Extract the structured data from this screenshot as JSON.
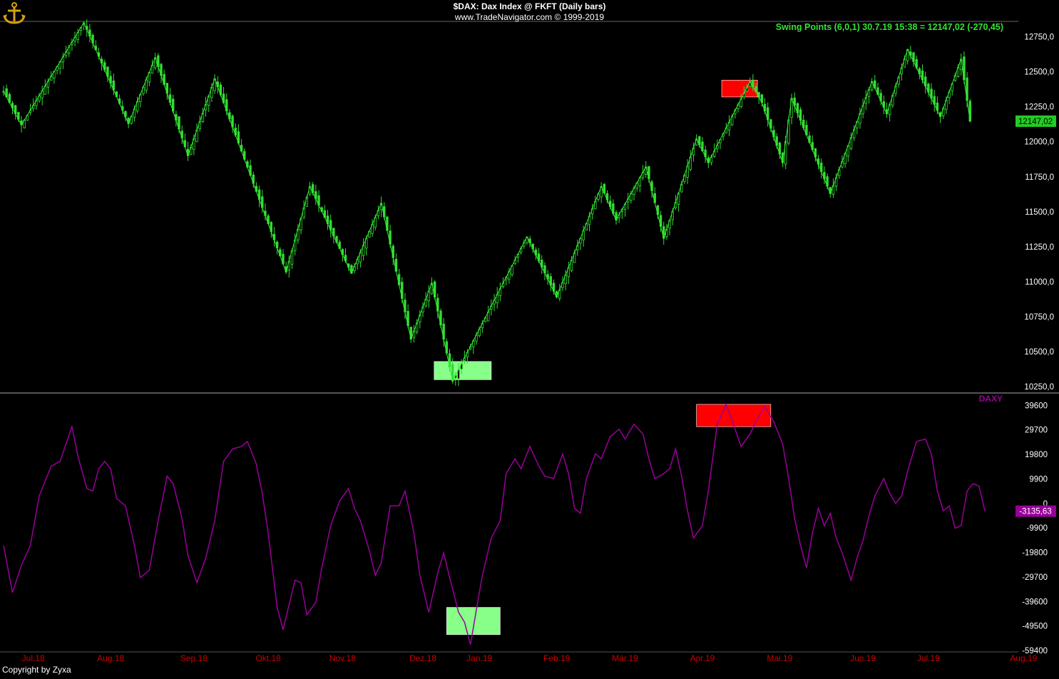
{
  "header": {
    "title": "$DAX:  Dax Index @ FKFT  (Daily bars)",
    "subtitle": "www.TradeNavigator.com © 1999-2019",
    "indicator_label": "Swing Points (6,0,1)   30.7.19 15:38 = 12147,02 (-270,45)",
    "logo_icon": "anchor-icon"
  },
  "footer": {
    "copyright": "Copyright by Zyxa"
  },
  "colors": {
    "background": "#000000",
    "candle": "#33dd33",
    "swing_line": "#33ee33",
    "oscillator": "#990099",
    "axis_label": "#ffffff",
    "month_label": "#cc0000",
    "last_price_box": "#22cc22",
    "osc_value_box": "#990099",
    "highlight_green": "#88ff88",
    "highlight_red": "#ff0000"
  },
  "chart_data": [
    {
      "type": "candlestick",
      "name": "price-panel",
      "title": "$DAX:  Dax Index @ FKFT  (Daily bars)",
      "ylim": [
        10200,
        12870
      ],
      "y_ticks": [
        "12750,0",
        "12500,0",
        "12250,0",
        "12000,0",
        "11750,0",
        "11500,0",
        "11250,0",
        "11000,0",
        "10750,0",
        "10500,0",
        "10250,0"
      ],
      "y_tick_values": [
        12750,
        12500,
        12250,
        12000,
        11750,
        11500,
        11250,
        11000,
        10750,
        10500,
        10250
      ],
      "last_price": 12147.02,
      "last_price_label": "12147,02",
      "swing_points": [
        {
          "d": 0,
          "v": 12360
        },
        {
          "d": 6,
          "v": 12120
        },
        {
          "d": 27,
          "v": 12850
        },
        {
          "d": 42,
          "v": 12130
        },
        {
          "d": 51,
          "v": 12600
        },
        {
          "d": 62,
          "v": 11900
        },
        {
          "d": 71,
          "v": 12450
        },
        {
          "d": 95,
          "v": 11070
        },
        {
          "d": 103,
          "v": 11680
        },
        {
          "d": 117,
          "v": 11060
        },
        {
          "d": 127,
          "v": 11560
        },
        {
          "d": 137,
          "v": 10590
        },
        {
          "d": 144,
          "v": 10990
        },
        {
          "d": 151,
          "v": 10290
        },
        {
          "d": 176,
          "v": 11320
        },
        {
          "d": 186,
          "v": 10890
        },
        {
          "d": 201,
          "v": 11680
        },
        {
          "d": 206,
          "v": 11440
        },
        {
          "d": 216,
          "v": 11820
        },
        {
          "d": 222,
          "v": 11310
        },
        {
          "d": 233,
          "v": 12020
        },
        {
          "d": 237,
          "v": 11850
        },
        {
          "d": 251,
          "v": 12430
        },
        {
          "d": 255,
          "v": 12280
        },
        {
          "d": 262,
          "v": 11850
        },
        {
          "d": 265,
          "v": 12310
        },
        {
          "d": 278,
          "v": 11630
        },
        {
          "d": 292,
          "v": 12430
        },
        {
          "d": 297,
          "v": 12200
        },
        {
          "d": 304,
          "v": 12660
        },
        {
          "d": 315,
          "v": 12180
        },
        {
          "d": 322,
          "v": 12590
        },
        {
          "d": 325,
          "v": 12147
        }
      ],
      "highlights": [
        {
          "color": "green",
          "d0": 144.8,
          "d1": 164,
          "v0": 10300,
          "v1": 10430
        },
        {
          "color": "red",
          "d0": 241.5,
          "d1": 253.5,
          "v0": 12320,
          "v1": 12440
        }
      ]
    },
    {
      "type": "line",
      "name": "oscillator-panel",
      "series_label": "DAXY",
      "ylim": [
        -59400,
        42000
      ],
      "y_ticks": [
        "39600",
        "29700",
        "19800",
        "9900",
        "0",
        "-9900",
        "-19800",
        "-29700",
        "-39600",
        "-49500",
        "-59400"
      ],
      "y_tick_values": [
        39600,
        29700,
        19800,
        9900,
        0,
        -9900,
        -19800,
        -29700,
        -39600,
        -49500,
        -59400
      ],
      "last_value": -3135.63,
      "last_value_label": "-3135,63",
      "points": [
        {
          "d": 0,
          "v": -17000
        },
        {
          "d": 3,
          "v": -36000
        },
        {
          "d": 6,
          "v": -25000
        },
        {
          "d": 9,
          "v": -17000
        },
        {
          "d": 12,
          "v": 3000
        },
        {
          "d": 16,
          "v": 15000
        },
        {
          "d": 19,
          "v": 17000
        },
        {
          "d": 23,
          "v": 31000
        },
        {
          "d": 25,
          "v": 19000
        },
        {
          "d": 28,
          "v": 6000
        },
        {
          "d": 30,
          "v": 5000
        },
        {
          "d": 32,
          "v": 14000
        },
        {
          "d": 34,
          "v": 17000
        },
        {
          "d": 36,
          "v": 14000
        },
        {
          "d": 38,
          "v": 2000
        },
        {
          "d": 41,
          "v": -1000
        },
        {
          "d": 44,
          "v": -17000
        },
        {
          "d": 46,
          "v": -30000
        },
        {
          "d": 49,
          "v": -27000
        },
        {
          "d": 52,
          "v": -7000
        },
        {
          "d": 55,
          "v": 11000
        },
        {
          "d": 57,
          "v": 8000
        },
        {
          "d": 60,
          "v": -6000
        },
        {
          "d": 62,
          "v": -21000
        },
        {
          "d": 65,
          "v": -32000
        },
        {
          "d": 68,
          "v": -22000
        },
        {
          "d": 71,
          "v": -7000
        },
        {
          "d": 74,
          "v": 17000
        },
        {
          "d": 77,
          "v": 22000
        },
        {
          "d": 80,
          "v": 23000
        },
        {
          "d": 82,
          "v": 25000
        },
        {
          "d": 85,
          "v": 16000
        },
        {
          "d": 87,
          "v": 4000
        },
        {
          "d": 89,
          "v": -12000
        },
        {
          "d": 92,
          "v": -42000
        },
        {
          "d": 94,
          "v": -51000
        },
        {
          "d": 96,
          "v": -41000
        },
        {
          "d": 98,
          "v": -31000
        },
        {
          "d": 100,
          "v": -32000
        },
        {
          "d": 102,
          "v": -45000
        },
        {
          "d": 105,
          "v": -40000
        },
        {
          "d": 107,
          "v": -26000
        },
        {
          "d": 110,
          "v": -9000
        },
        {
          "d": 113,
          "v": 1000
        },
        {
          "d": 116,
          "v": 6000
        },
        {
          "d": 118,
          "v": -2000
        },
        {
          "d": 120,
          "v": -7000
        },
        {
          "d": 123,
          "v": -19000
        },
        {
          "d": 125,
          "v": -29000
        },
        {
          "d": 127,
          "v": -24000
        },
        {
          "d": 130,
          "v": -1000
        },
        {
          "d": 133,
          "v": -1000
        },
        {
          "d": 135,
          "v": 5000
        },
        {
          "d": 138,
          "v": -12000
        },
        {
          "d": 140,
          "v": -29000
        },
        {
          "d": 143,
          "v": -44000
        },
        {
          "d": 146,
          "v": -28000
        },
        {
          "d": 148,
          "v": -20000
        },
        {
          "d": 150,
          "v": -30000
        },
        {
          "d": 153,
          "v": -44000
        },
        {
          "d": 155,
          "v": -48000
        },
        {
          "d": 157,
          "v": -57000
        },
        {
          "d": 159,
          "v": -43000
        },
        {
          "d": 161,
          "v": -29000
        },
        {
          "d": 164,
          "v": -14000
        },
        {
          "d": 167,
          "v": -7000
        },
        {
          "d": 169,
          "v": 12000
        },
        {
          "d": 172,
          "v": 18000
        },
        {
          "d": 174,
          "v": 14000
        },
        {
          "d": 177,
          "v": 23000
        },
        {
          "d": 180,
          "v": 15000
        },
        {
          "d": 182,
          "v": 11000
        },
        {
          "d": 185,
          "v": 10000
        },
        {
          "d": 188,
          "v": 20000
        },
        {
          "d": 190,
          "v": 12000
        },
        {
          "d": 192,
          "v": -2000
        },
        {
          "d": 194,
          "v": -4000
        },
        {
          "d": 196,
          "v": 10000
        },
        {
          "d": 199,
          "v": 20000
        },
        {
          "d": 201,
          "v": 18000
        },
        {
          "d": 204,
          "v": 27000
        },
        {
          "d": 207,
          "v": 30000
        },
        {
          "d": 209,
          "v": 26000
        },
        {
          "d": 212,
          "v": 32000
        },
        {
          "d": 215,
          "v": 28000
        },
        {
          "d": 217,
          "v": 18000
        },
        {
          "d": 219,
          "v": 10000
        },
        {
          "d": 222,
          "v": 12000
        },
        {
          "d": 224,
          "v": 14000
        },
        {
          "d": 226,
          "v": 22000
        },
        {
          "d": 228,
          "v": 11000
        },
        {
          "d": 230,
          "v": -3000
        },
        {
          "d": 232,
          "v": -14000
        },
        {
          "d": 235,
          "v": -9000
        },
        {
          "d": 237,
          "v": 5000
        },
        {
          "d": 240,
          "v": 32000
        },
        {
          "d": 243,
          "v": 40000
        },
        {
          "d": 246,
          "v": 30000
        },
        {
          "d": 248,
          "v": 23000
        },
        {
          "d": 251,
          "v": 28000
        },
        {
          "d": 253,
          "v": 33000
        },
        {
          "d": 256,
          "v": 39000
        },
        {
          "d": 259,
          "v": 33000
        },
        {
          "d": 262,
          "v": 24000
        },
        {
          "d": 264,
          "v": 10000
        },
        {
          "d": 266,
          "v": -6000
        },
        {
          "d": 268,
          "v": -17000
        },
        {
          "d": 270,
          "v": -26000
        },
        {
          "d": 272,
          "v": -12000
        },
        {
          "d": 274,
          "v": -2000
        },
        {
          "d": 276,
          "v": -9000
        },
        {
          "d": 278,
          "v": -4000
        },
        {
          "d": 280,
          "v": -14000
        },
        {
          "d": 282,
          "v": -20000
        },
        {
          "d": 285,
          "v": -31000
        },
        {
          "d": 287,
          "v": -22000
        },
        {
          "d": 289,
          "v": -15000
        },
        {
          "d": 291,
          "v": -5000
        },
        {
          "d": 293,
          "v": 3000
        },
        {
          "d": 296,
          "v": 10000
        },
        {
          "d": 298,
          "v": 4000
        },
        {
          "d": 300,
          "v": 0
        },
        {
          "d": 302,
          "v": 3000
        },
        {
          "d": 304,
          "v": 13000
        },
        {
          "d": 307,
          "v": 25000
        },
        {
          "d": 310,
          "v": 26000
        },
        {
          "d": 312,
          "v": 20000
        },
        {
          "d": 314,
          "v": 5000
        },
        {
          "d": 316,
          "v": -3000
        },
        {
          "d": 318,
          "v": -1000
        },
        {
          "d": 320,
          "v": -10000
        },
        {
          "d": 322,
          "v": -9000
        },
        {
          "d": 324,
          "v": 5000
        },
        {
          "d": 326,
          "v": 8000
        },
        {
          "d": 328,
          "v": 7000
        },
        {
          "d": 330,
          "v": -3136
        }
      ],
      "highlights": [
        {
          "color": "green",
          "d0": 149,
          "d1": 167,
          "v0": -53000,
          "v1": -42000
        },
        {
          "color": "red",
          "d0": 233,
          "d1": 258,
          "v0": 31000,
          "v1": 40000
        }
      ]
    }
  ],
  "x_axis": {
    "labels": [
      "Jul.18",
      "Aug.18",
      "Sep.18",
      "Okt.18",
      "Nov.18",
      "Dez.18",
      "Jan.19",
      "Feb.19",
      "Mär.19",
      "Apr.19",
      "Mai.19",
      "Jun.19",
      "Jul.19",
      "Aug.19"
    ],
    "positions": [
      10,
      36,
      64,
      89,
      114,
      141,
      160,
      186,
      209,
      235,
      261,
      289,
      311,
      343
    ]
  }
}
